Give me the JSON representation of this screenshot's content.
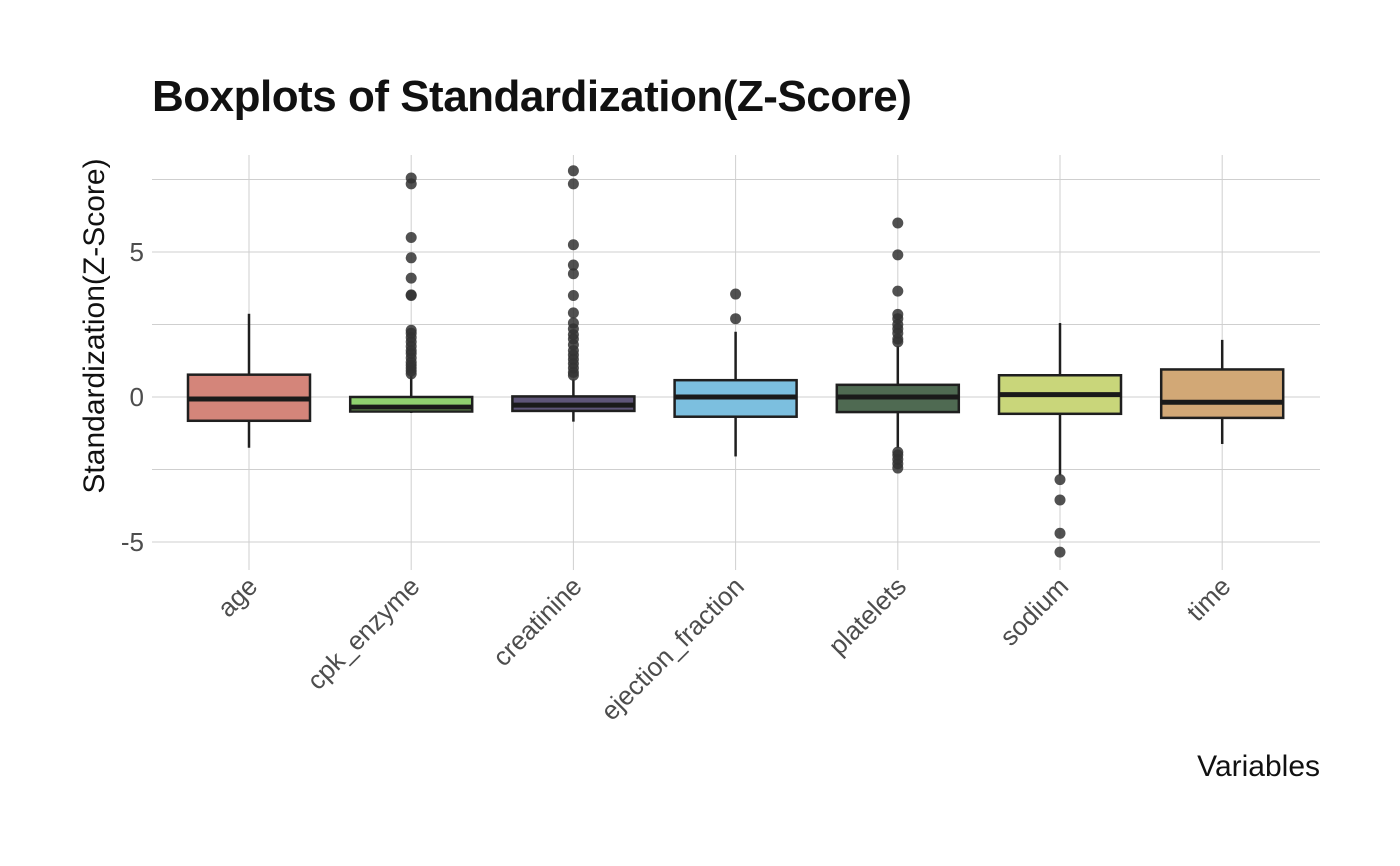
{
  "chart_data": {
    "type": "boxplot",
    "title": "Boxplots of Standardization(Z-Score)",
    "xlabel": "Variables",
    "ylabel": "Standardization(Z-Score)",
    "ylim": [
      -5.7,
      8.5
    ],
    "y_ticks": [
      -5,
      0,
      5
    ],
    "y_tick_labels": [
      "-5",
      "0",
      "5"
    ],
    "grid": true,
    "legend": "none",
    "categories": [
      "age",
      "cpk_enzyme",
      "creatinine",
      "ejection_fraction",
      "platelets",
      "sodium",
      "time"
    ],
    "boxes": [
      {
        "category": "age",
        "color": "#d4857a",
        "whisker_low": -1.75,
        "q1": -0.82,
        "median": -0.07,
        "q3": 0.77,
        "whisker_high": 2.87,
        "outliers": []
      },
      {
        "category": "cpk_enzyme",
        "color": "#8fd16f",
        "whisker_low": -0.55,
        "q1": -0.5,
        "median": -0.35,
        "q3": 0.0,
        "whisker_high": 0.73,
        "outliers": [
          0.8,
          0.9,
          1.0,
          1.1,
          1.2,
          1.35,
          1.5,
          1.6,
          1.75,
          1.9,
          2.05,
          2.2,
          2.3,
          3.5,
          3.52,
          4.1,
          4.8,
          5.5,
          7.35,
          7.55
        ]
      },
      {
        "category": "creatinine",
        "color": "#5e5578",
        "whisker_low": -0.85,
        "q1": -0.48,
        "median": -0.28,
        "q3": 0.02,
        "whisker_high": 0.6,
        "outliers": [
          0.75,
          0.85,
          1.0,
          1.15,
          1.3,
          1.45,
          1.6,
          1.8,
          2.0,
          2.15,
          2.35,
          2.55,
          2.9,
          3.5,
          4.25,
          4.55,
          5.25,
          7.35,
          7.8
        ]
      },
      {
        "category": "ejection_fraction",
        "color": "#7cbfdf",
        "whisker_low": -2.05,
        "q1": -0.68,
        "median": 0.0,
        "q3": 0.58,
        "whisker_high": 2.25,
        "outliers": [
          2.7,
          3.55
        ]
      },
      {
        "category": "platelets",
        "color": "#4f6a52",
        "whisker_low": -1.75,
        "q1": -0.52,
        "median": 0.0,
        "q3": 0.42,
        "whisker_high": 1.75,
        "outliers": [
          -2.45,
          -2.3,
          -2.15,
          -2.0,
          -1.9,
          1.9,
          2.0,
          2.2,
          2.35,
          2.5,
          2.7,
          2.85,
          3.65,
          4.9,
          6.0
        ]
      },
      {
        "category": "sodium",
        "color": "#c9d67a",
        "whisker_low": -2.7,
        "q1": -0.58,
        "median": 0.08,
        "q3": 0.75,
        "whisker_high": 2.55,
        "outliers": [
          -2.85,
          -3.55,
          -4.7,
          -5.35
        ]
      },
      {
        "category": "time",
        "color": "#d2a876",
        "whisker_low": -1.62,
        "q1": -0.72,
        "median": -0.18,
        "q3": 0.95,
        "whisker_high": 1.97,
        "outliers": []
      }
    ]
  },
  "colors": {
    "box_stroke": "#1f1f1f",
    "median_line": "#1a1a1a",
    "outlier_fill": "#333333",
    "grid": "#cfcfcf",
    "background": "#ffffff"
  }
}
